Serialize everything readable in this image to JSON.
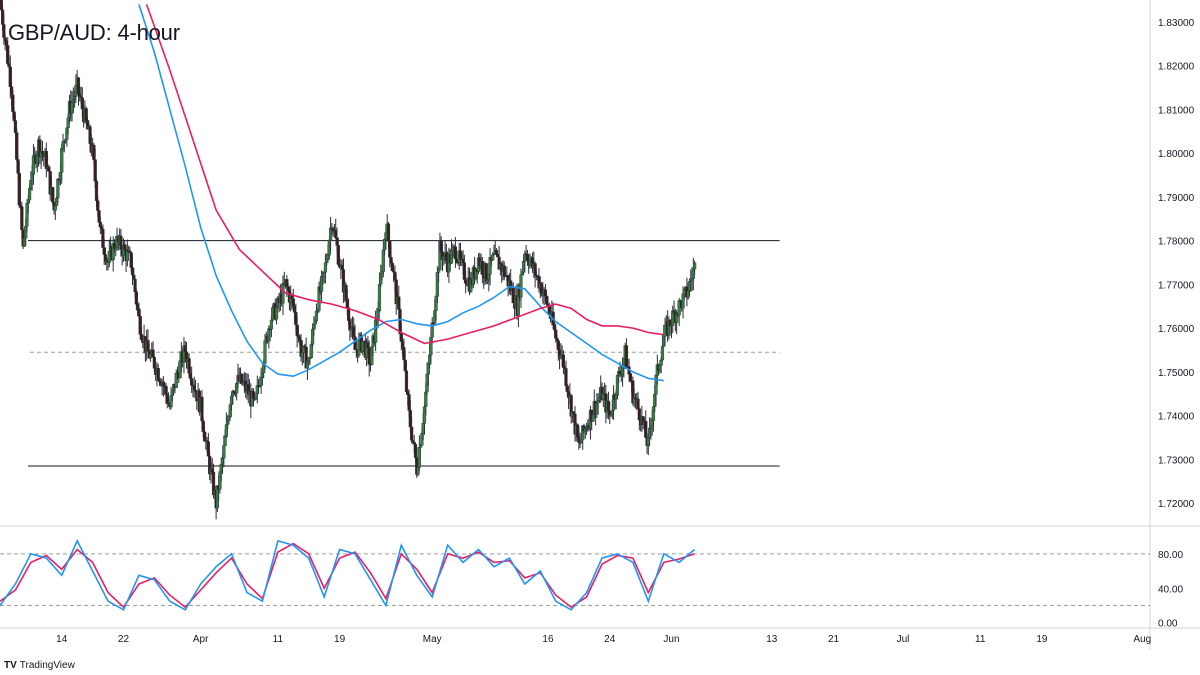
{
  "chart_title": "GBP/AUD: 4-hour",
  "branding": {
    "logo_text": "TV",
    "name": "TradingView"
  },
  "colors": {
    "bull_candle": "#3a7d44",
    "bear_candle": "#3b1f1f",
    "ma_fast": "#2196f3",
    "ma_slow": "#e91e63",
    "level_line": "#131722",
    "dashed_level": "#9e9e9e",
    "stoch_k": "#2196f3",
    "stoch_d": "#e91e63"
  },
  "chart_data": [
    {
      "type": "candlestick",
      "title": "GBP/AUD: 4-hour",
      "ylim": [
        1.715,
        1.835
      ],
      "y_ticks": [
        "1.83000",
        "1.82000",
        "1.81000",
        "1.80000",
        "1.79000",
        "1.78000",
        "1.77000",
        "1.76000",
        "1.75000",
        "1.74000",
        "1.73000",
        "1.72000"
      ],
      "x_ticks": [
        "14",
        "22",
        "Apr",
        "11",
        "19",
        "May",
        "16",
        "24",
        "Jun",
        "13",
        "21",
        "Jul",
        "11",
        "19",
        "Aug"
      ],
      "x_tick_days": [
        14,
        22,
        32,
        42,
        50,
        62,
        77,
        85,
        93,
        106,
        114,
        123,
        133,
        141,
        154
      ],
      "x_range_days": [
        6,
        155
      ],
      "close_path": [
        [
          6,
          1.835
        ],
        [
          7.5,
          1.815
        ],
        [
          8.5,
          1.79
        ],
        [
          9,
          1.778
        ],
        [
          10,
          1.795
        ],
        [
          11,
          1.802
        ],
        [
          12,
          1.798
        ],
        [
          13,
          1.787
        ],
        [
          14,
          1.8
        ],
        [
          15,
          1.81
        ],
        [
          16,
          1.815
        ],
        [
          17,
          1.808
        ],
        [
          18,
          1.8
        ],
        [
          19,
          1.782
        ],
        [
          20,
          1.775
        ],
        [
          21,
          1.78
        ],
        [
          22,
          1.778
        ],
        [
          23,
          1.775
        ],
        [
          24,
          1.762
        ],
        [
          25,
          1.755
        ],
        [
          26,
          1.752
        ],
        [
          27,
          1.748
        ],
        [
          28,
          1.742
        ],
        [
          29,
          1.75
        ],
        [
          30,
          1.755
        ],
        [
          31,
          1.748
        ],
        [
          32,
          1.742
        ],
        [
          33,
          1.73
        ],
        [
          34,
          1.72
        ],
        [
          35,
          1.732
        ],
        [
          36,
          1.746
        ],
        [
          37,
          1.748
        ],
        [
          38,
          1.746
        ],
        [
          39,
          1.742
        ],
        [
          40,
          1.752
        ],
        [
          41,
          1.762
        ],
        [
          42,
          1.765
        ],
        [
          43,
          1.77
        ],
        [
          44,
          1.765
        ],
        [
          45,
          1.755
        ],
        [
          46,
          1.752
        ],
        [
          47,
          1.765
        ],
        [
          48,
          1.772
        ],
        [
          49,
          1.785
        ],
        [
          50,
          1.775
        ],
        [
          51,
          1.765
        ],
        [
          52,
          1.755
        ],
        [
          53,
          1.757
        ],
        [
          54,
          1.752
        ],
        [
          55,
          1.765
        ],
        [
          56,
          1.784
        ],
        [
          57,
          1.772
        ],
        [
          58,
          1.758
        ],
        [
          59,
          1.74
        ],
        [
          60,
          1.728
        ],
        [
          61,
          1.742
        ],
        [
          62,
          1.76
        ],
        [
          63,
          1.778
        ],
        [
          64,
          1.775
        ],
        [
          65,
          1.778
        ],
        [
          66,
          1.773
        ],
        [
          67,
          1.77
        ],
        [
          68,
          1.776
        ],
        [
          69,
          1.772
        ],
        [
          70,
          1.776
        ],
        [
          71,
          1.774
        ],
        [
          72,
          1.77
        ],
        [
          73,
          1.765
        ],
        [
          74,
          1.778
        ],
        [
          75,
          1.774
        ],
        [
          76,
          1.77
        ],
        [
          77,
          1.765
        ],
        [
          78,
          1.758
        ],
        [
          79,
          1.752
        ],
        [
          80,
          1.742
        ],
        [
          81,
          1.733
        ],
        [
          82,
          1.738
        ],
        [
          83,
          1.742
        ],
        [
          84,
          1.745
        ],
        [
          85,
          1.74
        ],
        [
          86,
          1.748
        ],
        [
          87,
          1.754
        ],
        [
          88,
          1.745
        ],
        [
          89,
          1.74
        ],
        [
          90,
          1.733
        ],
        [
          91,
          1.748
        ],
        [
          92,
          1.758
        ],
        [
          93,
          1.762
        ],
        [
          94,
          1.765
        ],
        [
          95,
          1.768
        ],
        [
          96,
          1.774
        ]
      ],
      "series": [
        {
          "name": "fast MA",
          "values": [
            [
              24,
              1.834
            ],
            [
              26,
              1.823
            ],
            [
              28,
              1.81
            ],
            [
              30,
              1.797
            ],
            [
              32,
              1.783
            ],
            [
              34,
              1.772
            ],
            [
              36,
              1.764
            ],
            [
              38,
              1.757
            ],
            [
              40,
              1.752
            ],
            [
              42,
              1.7495
            ],
            [
              44,
              1.749
            ],
            [
              46,
              1.7505
            ],
            [
              48,
              1.7525
            ],
            [
              50,
              1.7545
            ],
            [
              52,
              1.757
            ],
            [
              54,
              1.7595
            ],
            [
              56,
              1.7615
            ],
            [
              58,
              1.762
            ],
            [
              60,
              1.761
            ],
            [
              62,
              1.7605
            ],
            [
              64,
              1.7615
            ],
            [
              66,
              1.7635
            ],
            [
              68,
              1.765
            ],
            [
              70,
              1.767
            ],
            [
              72,
              1.7695
            ],
            [
              74,
              1.769
            ],
            [
              76,
              1.765
            ],
            [
              78,
              1.7615
            ],
            [
              80,
              1.759
            ],
            [
              82,
              1.7565
            ],
            [
              84,
              1.754
            ],
            [
              86,
              1.752
            ],
            [
              88,
              1.75
            ],
            [
              90,
              1.7485
            ],
            [
              92,
              1.748
            ]
          ]
        },
        {
          "name": "slow MA",
          "values": [
            [
              25,
              1.834
            ],
            [
              28,
              1.819
            ],
            [
              31,
              1.803
            ],
            [
              34,
              1.787
            ],
            [
              37,
              1.778
            ],
            [
              40,
              1.773
            ],
            [
              43,
              1.768
            ],
            [
              46,
              1.7665
            ],
            [
              49,
              1.7655
            ],
            [
              52,
              1.764
            ],
            [
              55,
              1.762
            ],
            [
              58,
              1.759
            ],
            [
              61,
              1.7565
            ],
            [
              64,
              1.7575
            ],
            [
              67,
              1.759
            ],
            [
              70,
              1.7605
            ],
            [
              73,
              1.7625
            ],
            [
              76,
              1.7645
            ],
            [
              78,
              1.7655
            ],
            [
              80,
              1.7645
            ],
            [
              82,
              1.762
            ],
            [
              84,
              1.7605
            ],
            [
              86,
              1.7605
            ],
            [
              88,
              1.76
            ],
            [
              90,
              1.759
            ],
            [
              92,
              1.7585
            ]
          ]
        }
      ],
      "horizontal_levels": [
        {
          "value": 1.78,
          "style": "solid"
        },
        {
          "value": 1.7545,
          "style": "dashed"
        },
        {
          "value": 1.7285,
          "style": "solid"
        }
      ],
      "last_close_day": 96
    },
    {
      "type": "line",
      "ylim": [
        -5,
        110
      ],
      "y_ticks": [
        "80.00",
        "40.00",
        "0.00"
      ],
      "y_tick_values": [
        80,
        40,
        0
      ],
      "bands": [
        80,
        20
      ],
      "series": [
        {
          "name": "%K",
          "values": [
            [
              6,
              20
            ],
            [
              8,
              45
            ],
            [
              10,
              80
            ],
            [
              12,
              75
            ],
            [
              14,
              55
            ],
            [
              16,
              95
            ],
            [
              18,
              60
            ],
            [
              20,
              25
            ],
            [
              22,
              15
            ],
            [
              24,
              55
            ],
            [
              26,
              50
            ],
            [
              28,
              25
            ],
            [
              30,
              15
            ],
            [
              32,
              45
            ],
            [
              34,
              65
            ],
            [
              36,
              80
            ],
            [
              38,
              35
            ],
            [
              40,
              25
            ],
            [
              42,
              95
            ],
            [
              44,
              90
            ],
            [
              46,
              75
            ],
            [
              48,
              30
            ],
            [
              50,
              85
            ],
            [
              52,
              80
            ],
            [
              54,
              50
            ],
            [
              56,
              20
            ],
            [
              58,
              90
            ],
            [
              60,
              55
            ],
            [
              62,
              30
            ],
            [
              64,
              90
            ],
            [
              66,
              70
            ],
            [
              68,
              85
            ],
            [
              70,
              65
            ],
            [
              72,
              75
            ],
            [
              74,
              45
            ],
            [
              76,
              60
            ],
            [
              78,
              25
            ],
            [
              80,
              15
            ],
            [
              82,
              35
            ],
            [
              84,
              75
            ],
            [
              86,
              80
            ],
            [
              88,
              70
            ],
            [
              90,
              25
            ],
            [
              92,
              80
            ],
            [
              94,
              70
            ],
            [
              96,
              85
            ]
          ]
        },
        {
          "name": "%D",
          "values": [
            [
              6,
              25
            ],
            [
              8,
              38
            ],
            [
              10,
              70
            ],
            [
              12,
              78
            ],
            [
              14,
              62
            ],
            [
              16,
              85
            ],
            [
              18,
              70
            ],
            [
              20,
              35
            ],
            [
              22,
              18
            ],
            [
              24,
              45
            ],
            [
              26,
              52
            ],
            [
              28,
              32
            ],
            [
              30,
              18
            ],
            [
              32,
              38
            ],
            [
              34,
              58
            ],
            [
              36,
              75
            ],
            [
              38,
              45
            ],
            [
              40,
              28
            ],
            [
              42,
              82
            ],
            [
              44,
              92
            ],
            [
              46,
              80
            ],
            [
              48,
              40
            ],
            [
              50,
              75
            ],
            [
              52,
              82
            ],
            [
              54,
              58
            ],
            [
              56,
              28
            ],
            [
              58,
              80
            ],
            [
              60,
              62
            ],
            [
              62,
              35
            ],
            [
              64,
              80
            ],
            [
              66,
              75
            ],
            [
              68,
              82
            ],
            [
              70,
              70
            ],
            [
              72,
              72
            ],
            [
              74,
              52
            ],
            [
              76,
              58
            ],
            [
              78,
              32
            ],
            [
              80,
              18
            ],
            [
              82,
              30
            ],
            [
              84,
              68
            ],
            [
              86,
              78
            ],
            [
              88,
              75
            ],
            [
              90,
              35
            ],
            [
              92,
              70
            ],
            [
              94,
              74
            ],
            [
              96,
              80
            ]
          ]
        }
      ]
    }
  ]
}
